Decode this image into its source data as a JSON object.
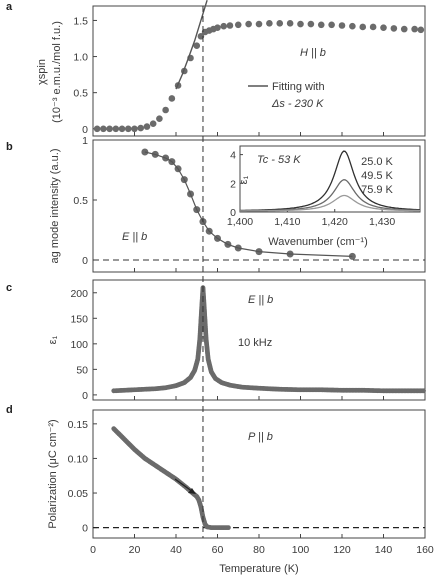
{
  "figure": {
    "x_axis_label": "Temperature (K)",
    "x_ticks": [
      "0",
      "20",
      "40",
      "60",
      "80",
      "100",
      "120",
      "140",
      "160"
    ],
    "tc_line_T": 53
  },
  "chart_data": [
    {
      "panel": "a",
      "type": "scatter",
      "ylabel_line1": "χspin",
      "ylabel_line2": "(10⁻³ e.m.u./mol f.u.)",
      "xlim": [
        0,
        160
      ],
      "ylim": [
        -0.1,
        1.7
      ],
      "y_ticks": [
        "0",
        "0.5",
        "1.0",
        "1.5"
      ],
      "annotation_field": "H || b",
      "legend_fit_line1": "Fitting with",
      "legend_fit_line2": "Δs - 230 K",
      "series": [
        {
          "x": [
            2,
            5,
            8,
            11,
            14,
            17,
            20,
            23,
            26,
            29,
            32,
            35,
            38,
            41,
            44,
            47,
            50,
            52,
            54,
            56,
            58,
            60,
            63,
            66,
            70,
            75,
            80,
            85,
            90,
            95,
            100,
            105,
            110,
            115,
            120,
            125,
            130,
            135,
            140,
            145,
            150,
            155,
            158
          ],
          "y": [
            0,
            0,
            0,
            0,
            0,
            0,
            0,
            0.01,
            0.03,
            0.07,
            0.14,
            0.26,
            0.42,
            0.6,
            0.8,
            0.98,
            1.15,
            1.28,
            1.34,
            1.36,
            1.38,
            1.4,
            1.42,
            1.43,
            1.44,
            1.45,
            1.45,
            1.46,
            1.46,
            1.46,
            1.45,
            1.45,
            1.44,
            1.44,
            1.43,
            1.42,
            1.41,
            1.41,
            1.4,
            1.39,
            1.38,
            1.38,
            1.37
          ]
        }
      ],
      "fit_curve": {
        "x": [
          40,
          43,
          46,
          49,
          52,
          55
        ],
        "y": [
          0.55,
          0.75,
          0.98,
          1.22,
          1.5,
          1.78
        ]
      }
    },
    {
      "panel": "b",
      "type": "line",
      "ylabel": "ag mode intensity (a.u.)",
      "xlim": [
        0,
        160
      ],
      "ylim": [
        -0.1,
        1.0
      ],
      "y_ticks": [
        "0",
        "0.5",
        "1"
      ],
      "annotation_field": "E || b",
      "series": [
        {
          "x": [
            25,
            30,
            35,
            38,
            41,
            44,
            47,
            50,
            53,
            56,
            60,
            65,
            70,
            80,
            95,
            125
          ],
          "y": [
            0.9,
            0.88,
            0.85,
            0.82,
            0.76,
            0.67,
            0.55,
            0.42,
            0.32,
            0.24,
            0.18,
            0.13,
            0.1,
            0.07,
            0.05,
            0.03
          ]
        }
      ],
      "inset": {
        "tc_label": "Tc - 53 K",
        "ylabel": "ε₁",
        "xlabel": "Wavenumber (cm⁻¹)",
        "xlim": [
          1400,
          1438
        ],
        "ylim": [
          0,
          4.6
        ],
        "x_ticks": [
          "1,400",
          "1,410",
          "1,420",
          "1,430"
        ],
        "y_ticks": [
          "0",
          "2",
          "4"
        ],
        "series": [
          {
            "name": "25.0 K",
            "center": 1422,
            "width": 2.6,
            "amp": 4.2,
            "color": "#303030"
          },
          {
            "name": "49.5 K",
            "center": 1422,
            "width": 2.8,
            "amp": 2.2,
            "color": "#6a6a6a"
          },
          {
            "name": "75.9 K",
            "center": 1422,
            "width": 3.0,
            "amp": 1.1,
            "color": "#9a9a9a"
          }
        ]
      }
    },
    {
      "panel": "c",
      "type": "line",
      "ylabel": "ε₁",
      "xlim": [
        0,
        160
      ],
      "ylim": [
        -10,
        225
      ],
      "y_ticks": [
        "0",
        "50",
        "100",
        "150",
        "200"
      ],
      "annotation_field": "E || b",
      "annotation_freq": "10 kHz",
      "series": [
        {
          "x": [
            10,
            15,
            20,
            25,
            30,
            35,
            40,
            44,
            47,
            49,
            50.5,
            51.5,
            52.3,
            53,
            53.7,
            54.5,
            55.5,
            57,
            59,
            62,
            66,
            72,
            80,
            90,
            100,
            110,
            120,
            130,
            140,
            150,
            160
          ],
          "y": [
            8,
            9,
            10,
            11,
            12,
            14,
            18,
            24,
            34,
            48,
            70,
            110,
            165,
            210,
            165,
            110,
            70,
            45,
            32,
            24,
            19,
            15,
            13,
            11,
            10,
            10,
            9,
            9,
            8,
            8,
            8
          ]
        }
      ]
    },
    {
      "panel": "d",
      "type": "line",
      "ylabel": "Polarization (μC cm⁻²)",
      "xlim": [
        0,
        160
      ],
      "ylim": [
        -0.015,
        0.17
      ],
      "y_ticks": [
        "0",
        "0.05",
        "0.10",
        "0.15"
      ],
      "annotation_field": "P || b",
      "series": [
        {
          "x": [
            10,
            15,
            20,
            25,
            30,
            35,
            40,
            45,
            48,
            50,
            51,
            52,
            53,
            54,
            55,
            57,
            60,
            63,
            66
          ],
          "y": [
            0.143,
            0.128,
            0.113,
            0.1,
            0.09,
            0.08,
            0.07,
            0.058,
            0.05,
            0.045,
            0.04,
            0.03,
            0.015,
            0.005,
            0.001,
            0,
            0,
            0,
            0
          ]
        }
      ]
    }
  ]
}
